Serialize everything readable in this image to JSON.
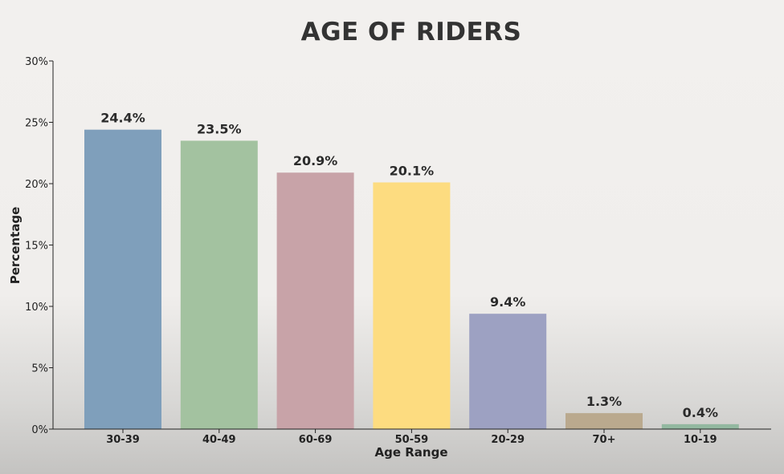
{
  "chart_data": {
    "type": "bar",
    "title": "AGE OF RIDERS",
    "xlabel": "Age Range",
    "ylabel": "Percentage",
    "categories": [
      "30-39",
      "40-49",
      "60-69",
      "50-59",
      "20-29",
      "70+",
      "10-19"
    ],
    "values": [
      24.4,
      23.5,
      20.9,
      20.1,
      9.4,
      1.3,
      0.4
    ],
    "data_labels": [
      "24.4%",
      "23.5%",
      "20.9%",
      "20.1%",
      "9.4%",
      "1.3%",
      "0.4%"
    ],
    "ylim": [
      0,
      30
    ],
    "yticks": [
      0,
      5,
      10,
      15,
      20,
      25,
      30
    ],
    "ytick_labels": [
      "0%",
      "5%",
      "10%",
      "15%",
      "20%",
      "25%",
      "30%"
    ],
    "colors": [
      "#7f9fbb",
      "#a3c2a0",
      "#c8a3a8",
      "#fddc80",
      "#9da1c2",
      "#baa98e",
      "#93b8a0"
    ],
    "grid": false,
    "legend": "none"
  }
}
